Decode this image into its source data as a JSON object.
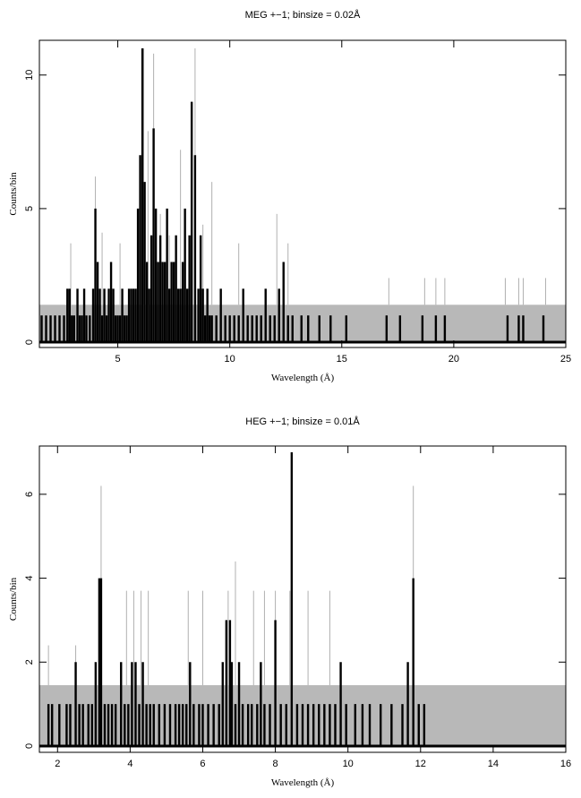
{
  "chart_data": [
    {
      "type": "bar",
      "title": "MEG +−1; binsize = 0.02Å",
      "xlabel": "Wavelength (Å)",
      "ylabel": "Counts/bin",
      "xlim": [
        1.5,
        25
      ],
      "ylim": [
        -0.2,
        11.3
      ],
      "xticks": [
        5,
        10,
        15,
        20,
        25
      ],
      "yticks": [
        0,
        5,
        10
      ],
      "band": {
        "low": 0,
        "high": 1.4,
        "color": "#b8b8b8"
      },
      "grey_spikes": {
        "color": "#b0b0b0",
        "note": "upper error envelope",
        "x": [
          2.9,
          4.0,
          4.3,
          5.1,
          5.9,
          6.15,
          6.35,
          6.6,
          6.9,
          7.3,
          7.8,
          8.45,
          8.8,
          9.2,
          10.4,
          12.1,
          12.6,
          17.1,
          18.7,
          19.2,
          19.6,
          22.3,
          22.9,
          23.1,
          24.1
        ],
        "y": [
          3.7,
          6.2,
          4.1,
          3.7,
          4.8,
          11.0,
          7.9,
          10.8,
          4.8,
          4.0,
          7.2,
          11.0,
          4.4,
          6.0,
          3.7,
          4.8,
          3.7,
          2.4,
          2.4,
          2.4,
          2.4,
          2.4,
          2.4,
          2.4,
          2.4
        ]
      },
      "series": [
        {
          "color": "#000000",
          "x": [
            1.6,
            1.8,
            2.0,
            2.2,
            2.4,
            2.6,
            2.75,
            2.85,
            2.95,
            3.05,
            3.2,
            3.3,
            3.4,
            3.5,
            3.6,
            3.75,
            3.9,
            4.0,
            4.1,
            4.2,
            4.3,
            4.4,
            4.5,
            4.6,
            4.7,
            4.8,
            4.9,
            5.0,
            5.1,
            5.2,
            5.3,
            5.4,
            5.5,
            5.6,
            5.7,
            5.8,
            5.9,
            6.0,
            6.1,
            6.2,
            6.3,
            6.4,
            6.5,
            6.6,
            6.7,
            6.8,
            6.9,
            7.0,
            7.1,
            7.2,
            7.3,
            7.4,
            7.5,
            7.6,
            7.7,
            7.8,
            7.9,
            8.0,
            8.1,
            8.2,
            8.3,
            8.45,
            8.6,
            8.7,
            8.8,
            8.9,
            9.0,
            9.1,
            9.2,
            9.4,
            9.6,
            9.8,
            10.0,
            10.2,
            10.4,
            10.6,
            10.8,
            11.0,
            11.2,
            11.4,
            11.6,
            11.8,
            12.0,
            12.2,
            12.4,
            12.6,
            12.8,
            13.2,
            13.5,
            14.0,
            14.5,
            15.2,
            17.0,
            17.6,
            18.6,
            19.2,
            19.6,
            22.4,
            22.9,
            23.1,
            24.0
          ],
          "values": [
            1,
            1,
            1,
            1,
            1,
            1,
            2,
            2,
            1,
            1,
            2,
            1,
            1,
            2,
            1,
            1,
            2,
            5,
            3,
            2,
            1,
            2,
            1,
            2,
            3,
            2,
            1,
            1,
            1,
            2,
            1,
            1,
            2,
            2,
            2,
            2,
            5,
            7,
            11,
            6,
            3,
            2,
            4,
            8,
            5,
            3,
            4,
            3,
            3,
            5,
            2,
            3,
            3,
            4,
            2,
            2,
            3,
            5,
            2,
            4,
            9,
            7,
            2,
            4,
            2,
            1,
            2,
            1,
            1,
            1,
            2,
            1,
            1,
            1,
            1,
            2,
            1,
            1,
            1,
            1,
            2,
            1,
            1,
            2,
            3,
            1,
            1,
            1,
            1,
            1,
            1,
            1,
            1,
            1,
            1,
            1,
            1,
            1,
            1,
            1,
            1
          ]
        }
      ]
    },
    {
      "type": "bar",
      "title": "HEG +−1; binsize = 0.01Å",
      "xlabel": "Wavelength (Å)",
      "ylabel": "Counts/bin",
      "xlim": [
        1.5,
        16
      ],
      "ylim": [
        -0.15,
        7.15
      ],
      "xticks": [
        2,
        4,
        6,
        8,
        10,
        12,
        14,
        16
      ],
      "yticks": [
        0,
        2,
        4,
        6
      ],
      "band": {
        "low": 0,
        "high": 1.45,
        "color": "#b8b8b8"
      },
      "grey_spikes": {
        "color": "#b0b0b0",
        "note": "upper error envelope",
        "x": [
          1.75,
          2.5,
          3.2,
          3.9,
          4.1,
          4.3,
          4.5,
          5.6,
          6.0,
          6.7,
          6.9,
          7.4,
          7.7,
          8.0,
          8.4,
          8.9,
          9.5,
          11.8
        ],
        "y": [
          2.4,
          2.4,
          6.2,
          3.7,
          3.7,
          3.7,
          3.7,
          3.7,
          3.7,
          3.7,
          4.4,
          3.7,
          3.7,
          3.7,
          3.7,
          3.7,
          3.7,
          6.2
        ]
      },
      "series": [
        {
          "color": "#000000",
          "x": [
            1.75,
            1.85,
            2.05,
            2.25,
            2.35,
            2.5,
            2.6,
            2.7,
            2.85,
            2.95,
            3.05,
            3.15,
            3.2,
            3.3,
            3.4,
            3.5,
            3.6,
            3.75,
            3.85,
            3.95,
            4.05,
            4.15,
            4.25,
            4.35,
            4.45,
            4.55,
            4.65,
            4.8,
            4.95,
            5.1,
            5.25,
            5.35,
            5.45,
            5.55,
            5.65,
            5.75,
            5.9,
            6.0,
            6.15,
            6.3,
            6.45,
            6.55,
            6.65,
            6.75,
            6.8,
            6.9,
            7.0,
            7.1,
            7.25,
            7.35,
            7.5,
            7.6,
            7.7,
            7.85,
            8.0,
            8.15,
            8.3,
            8.45,
            8.6,
            8.75,
            8.9,
            9.05,
            9.2,
            9.35,
            9.5,
            9.65,
            9.8,
            9.95,
            10.2,
            10.4,
            10.6,
            10.9,
            11.2,
            11.5,
            11.65,
            11.8,
            11.95,
            12.1
          ],
          "values": [
            1,
            1,
            1,
            1,
            1,
            2,
            1,
            1,
            1,
            1,
            2,
            4,
            4,
            1,
            1,
            1,
            1,
            2,
            1,
            1,
            2,
            2,
            1,
            2,
            1,
            1,
            1,
            1,
            1,
            1,
            1,
            1,
            1,
            1,
            2,
            1,
            1,
            1,
            1,
            1,
            1,
            2,
            3,
            3,
            2,
            1,
            2,
            1,
            1,
            1,
            1,
            2,
            1,
            1,
            3,
            1,
            1,
            7,
            1,
            1,
            1,
            1,
            1,
            1,
            1,
            1,
            2,
            1,
            1,
            1,
            1,
            1,
            1,
            1,
            2,
            4,
            1,
            1
          ]
        }
      ]
    }
  ]
}
